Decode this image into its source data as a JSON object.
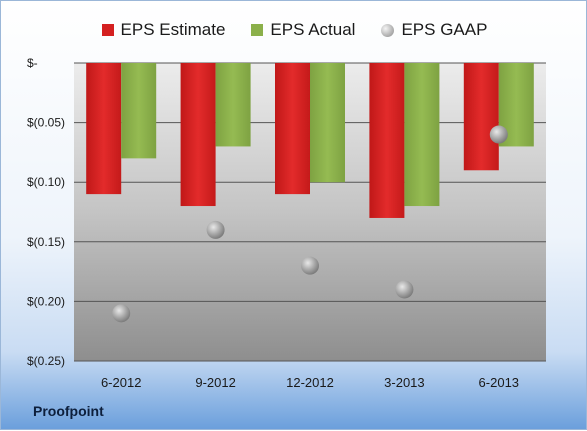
{
  "company": "Proofpoint",
  "colors": {
    "estimate": "#d42020",
    "actual": "#8bb04a",
    "gaap": "#a8a8a8"
  },
  "chart_data": {
    "type": "bar",
    "categories": [
      "6-2012",
      "9-2012",
      "12-2012",
      "3-2013",
      "6-2013"
    ],
    "series": [
      {
        "name": "EPS Estimate",
        "type": "bar",
        "values": [
          -0.11,
          -0.12,
          -0.11,
          -0.13,
          -0.09
        ]
      },
      {
        "name": "EPS Actual",
        "type": "bar",
        "values": [
          -0.08,
          -0.07,
          -0.1,
          -0.12,
          -0.07
        ]
      },
      {
        "name": "EPS GAAP",
        "type": "scatter",
        "values": [
          -0.21,
          -0.14,
          -0.17,
          -0.19,
          -0.06
        ]
      }
    ],
    "ylim": [
      -0.25,
      0
    ],
    "yticks": [
      0,
      -0.05,
      -0.1,
      -0.15,
      -0.2,
      -0.25
    ],
    "ytick_labels": [
      "$-",
      "$(0.05)",
      "$(0.10)",
      "$(0.15)",
      "$(0.20)",
      "$(0.25)"
    ],
    "grid": true,
    "legend_position": "top"
  }
}
